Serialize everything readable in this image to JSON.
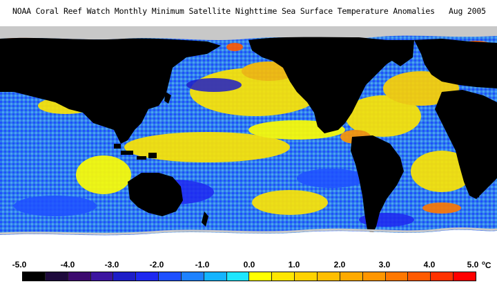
{
  "title": "NOAA Coral Reef Watch Monthly Minimum Satellite Nighttime Sea Surface Temperature Anomalies   Aug 2005",
  "colors": {
    "land": "#000000",
    "ice": "#c8c8c8",
    "no_data": "#ffffff",
    "ocean_base": "#2f7ee8"
  },
  "scale": {
    "ticks": [
      "-5.0",
      "-4.0",
      "-3.0",
      "-2.0",
      "-1.0",
      "0.0",
      "1.0",
      "2.0",
      "3.0",
      "4.0",
      "5.0"
    ],
    "unit_sup": "o",
    "unit": "C",
    "swatches": [
      "#000000",
      "#1e0a3c",
      "#3c0a6e",
      "#3c14a0",
      "#1e1ec8",
      "#1e28f0",
      "#1e50ff",
      "#1e82ff",
      "#14b4ff",
      "#1ee6ff",
      "#ffff00",
      "#ffe600",
      "#ffd200",
      "#ffbe00",
      "#ffaa00",
      "#ff9600",
      "#ff7800",
      "#ff5a00",
      "#ff3200",
      "#ff0000"
    ]
  }
}
